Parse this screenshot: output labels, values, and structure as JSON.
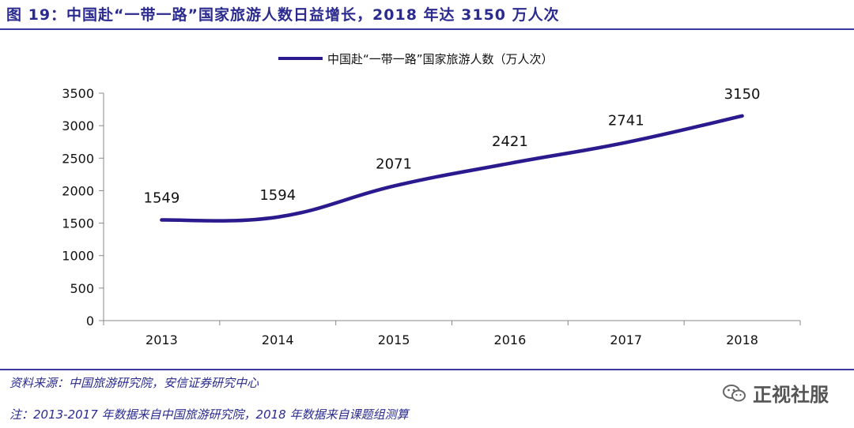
{
  "figure": {
    "title": "图 19：中国赴“一带一路”国家旅游人数日益增长，2018 年达 3150 万人次"
  },
  "chart_data": {
    "type": "line",
    "title": "",
    "xlabel": "",
    "ylabel": "",
    "categories": [
      "2013",
      "2014",
      "2015",
      "2016",
      "2017",
      "2018"
    ],
    "series": [
      {
        "name": "中国赴“一带一路”国家旅游人数（万人次）",
        "values": [
          1549,
          1594,
          2071,
          2421,
          2741,
          3150
        ]
      }
    ],
    "ylim": [
      0,
      3500
    ],
    "yticks": [
      0,
      500,
      1000,
      1500,
      2000,
      2500,
      3000,
      3500
    ],
    "grid": false,
    "legend_position": "top-center",
    "smooth": true,
    "line_color": "#2a1a8e"
  },
  "footer": {
    "source": "资料来源：中国旅游研究院，安信证券研究中心",
    "note": "注：2013-2017 年数据来自中国旅游研究院，2018 年数据来自课题组测算"
  },
  "watermark": {
    "icon": "wechat-icon",
    "text": "正视社服"
  }
}
